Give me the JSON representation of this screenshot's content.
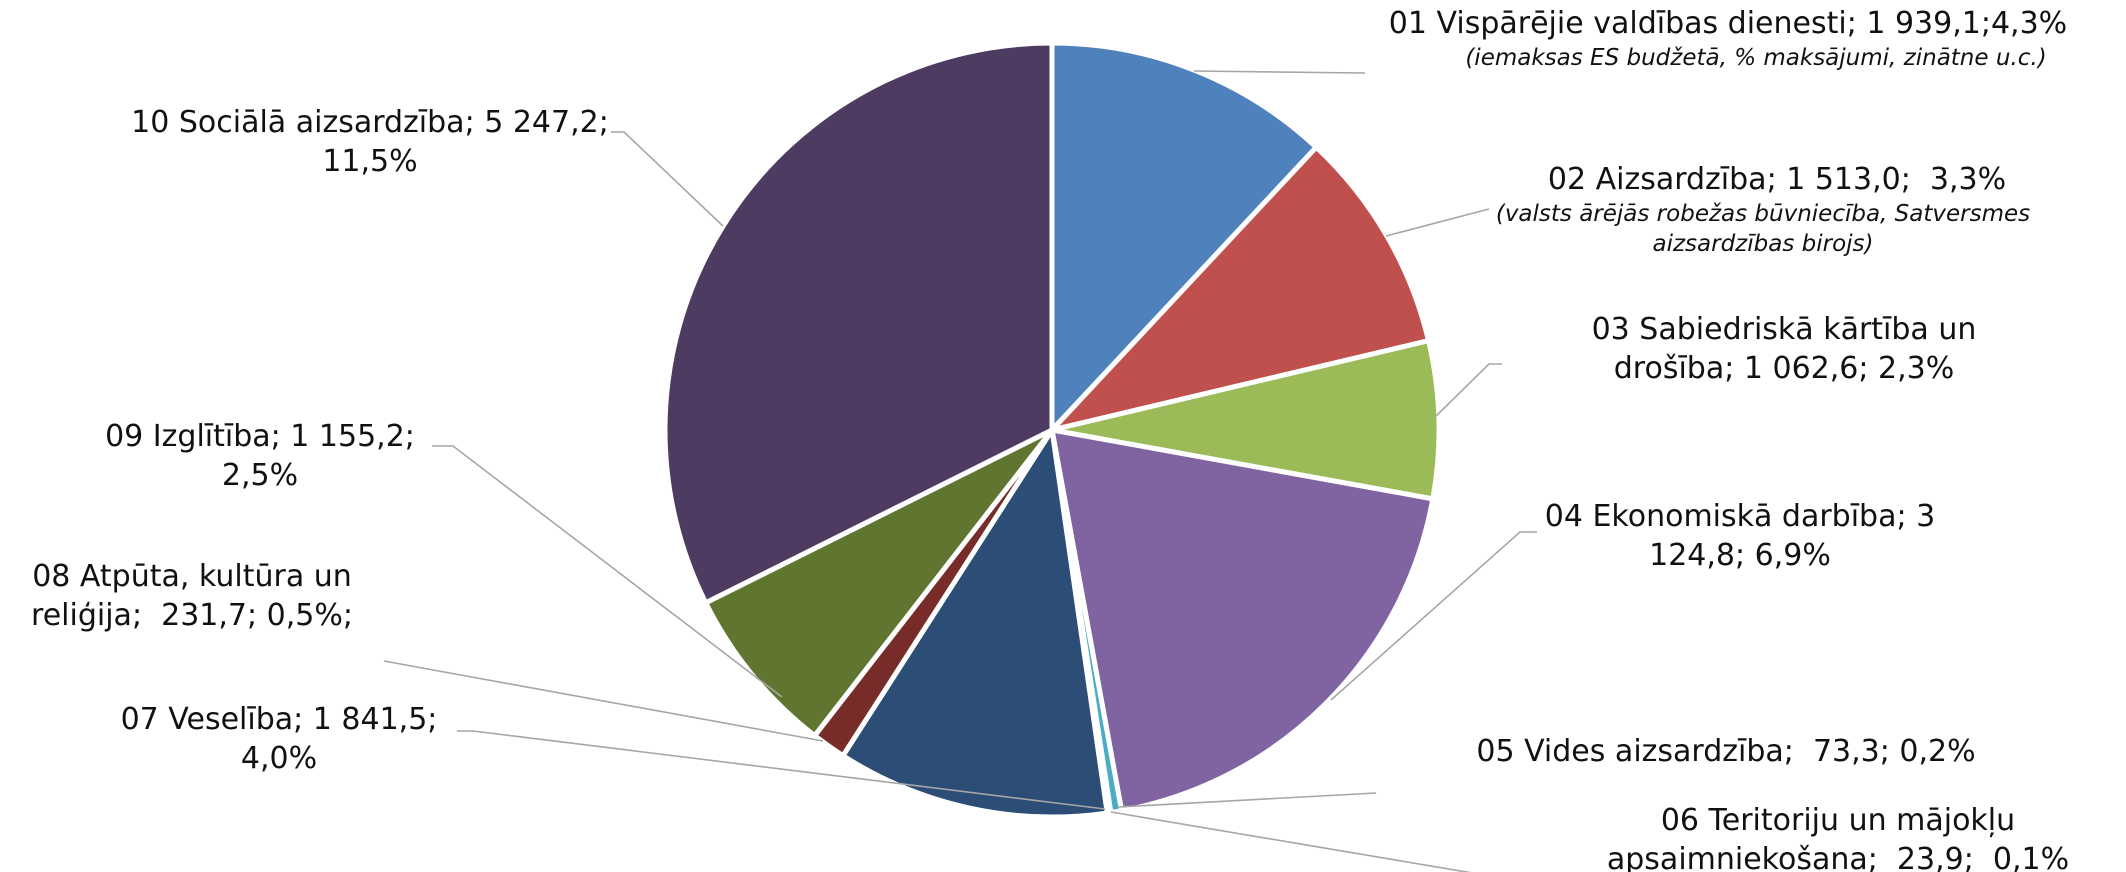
{
  "chart_data": {
    "type": "pie",
    "categories": [
      "01 Vispārējie valdības dienesti",
      "02 Aizsardzība",
      "03 Sabiedriskā kārtība un drošība",
      "04 Ekonomiskā darbība",
      "05 Vides aizsardzība",
      "06 Teritoriju un mājokļu apsaimniekošana",
      "07 Veselība",
      "08 Atpūta, kultūra un reliģija",
      "09 Izglītība",
      "10 Sociālā aizsardzība"
    ],
    "values": [
      1939.1,
      1513.0,
      1062.6,
      3124.8,
      73.3,
      23.9,
      1841.5,
      231.7,
      1155.2,
      5247.2
    ],
    "value_labels": [
      "; 1 939,1;4,3%",
      "; 1 513,0;  3,3%",
      "; 1 062,6; 2,3%",
      "; 3 124,8; 6,9%",
      ";  73,3; 0,2%",
      ";  23,9;  0,1%",
      "; 1 841,5; 4,0%",
      ";  231,7; 0,5%;",
      "; 1 155,2; 2,5%",
      "; 5 247,2; 11,5%"
    ],
    "notes": [
      "(iemaksas ES budžetā, % maksājumi, zinātne u.c.)",
      "(valsts ārējās robežas būvniecība, Satversmes aizsardzības birojs)",
      null,
      null,
      null,
      null,
      null,
      null,
      null,
      null
    ],
    "colors": [
      "#4f81bd",
      "#c0504d",
      "#9bbb59",
      "#8064a2",
      "#4bacc6",
      "#f79646",
      "#2c4d75",
      "#772c2a",
      "#5f7530",
      "#4d3b62"
    ]
  }
}
